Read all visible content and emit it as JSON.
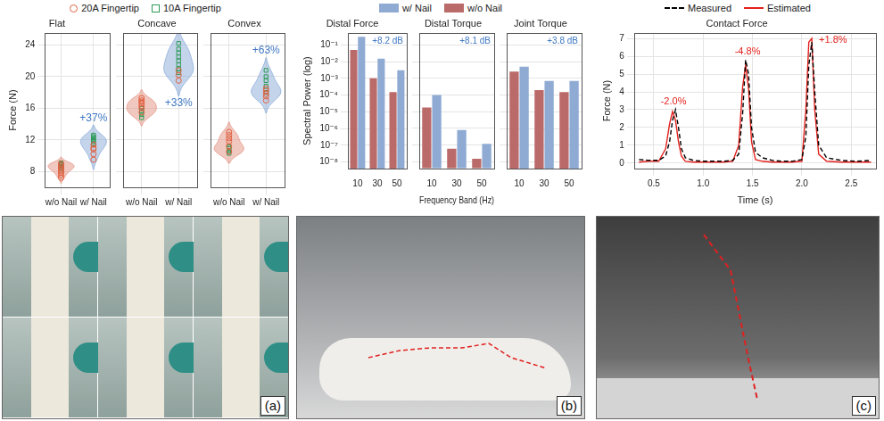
{
  "chart_data": [
    {
      "type": "violin",
      "title": "Flat",
      "categories": [
        "w/o Nail",
        "w/ Nail"
      ],
      "colors": [
        "#e69a8c",
        "#92b1da"
      ],
      "series": [
        {
          "name": "20A Fingertip",
          "color": "#e0603f",
          "marker": "circle",
          "values": [
            [
              7.2,
              7.5,
              7.8,
              8.0,
              8.2,
              8.4,
              8.6,
              8.8,
              9.0
            ],
            [
              9.5,
              10.2,
              10.8,
              11.0,
              11.4
            ]
          ]
        },
        {
          "name": "10A Fingertip",
          "color": "#2e9a57",
          "marker": "square",
          "values": [
            [
              8.3,
              8.5,
              8.7,
              8.9,
              9.0,
              9.1
            ],
            [
              11.5,
              11.8,
              12.0,
              12.2,
              12.4,
              12.6
            ]
          ]
        }
      ],
      "y_label": "Force (N)",
      "ylim": [
        6,
        25.5
      ],
      "yticks": [
        8,
        12,
        16,
        20,
        24
      ],
      "annotations": [
        {
          "text": "+37%"
        }
      ],
      "grid": true,
      "legend": "top"
    },
    {
      "type": "violin",
      "title": "Concave",
      "categories": [
        "w/o Nail",
        "w/ Nail"
      ],
      "colors": [
        "#e69a8c",
        "#92b1da"
      ],
      "series": [
        {
          "name": "20A Fingertip",
          "color": "#e0603f",
          "marker": "circle",
          "values": [
            [
              15.5,
              16.0,
              16.3,
              16.6,
              16.8,
              17.0,
              17.3
            ],
            [
              19.5,
              20.2,
              20.8
            ]
          ]
        },
        {
          "name": "10A Fingertip",
          "color": "#2e9a57",
          "marker": "square",
          "values": [
            [
              14.8,
              15.2,
              15.6,
              16.0
            ],
            [
              20.5,
              21.0,
              21.5,
              22.0,
              22.5,
              23.0,
              23.5,
              24.2
            ]
          ]
        }
      ],
      "ylim": [
        6,
        25.5
      ],
      "yticks": [
        8,
        12,
        16,
        20,
        24
      ],
      "tick_labels": "x",
      "annotations": [
        {
          "text": "+33%"
        }
      ],
      "grid": true
    },
    {
      "type": "violin",
      "title": "Convex",
      "categories": [
        "w/o Nail",
        "w/ Nail"
      ],
      "colors": [
        "#e69a8c",
        "#92b1da"
      ],
      "series": [
        {
          "name": "20A Fingertip",
          "color": "#e0603f",
          "marker": "circle",
          "values": [
            [
              10.5,
              11.2,
              11.8,
              12.2,
              12.6,
              13.0
            ],
            [
              17.0,
              17.5,
              17.8,
              18.2,
              18.5
            ]
          ]
        },
        {
          "name": "10A Fingertip",
          "color": "#2e9a57",
          "marker": "square",
          "values": [
            [
              10.3,
              10.6,
              10.9,
              11.1
            ],
            [
              18.0,
              18.8,
              19.5,
              20.0,
              20.8
            ]
          ]
        }
      ],
      "ylim": [
        6,
        25.5
      ],
      "yticks": [
        8,
        12,
        16,
        20,
        24
      ],
      "tick_labels": "x",
      "annotations": [
        {
          "text": "+63%"
        }
      ],
      "grid": true
    },
    {
      "type": "bar",
      "log": "y",
      "title": "Distal Force",
      "categories": [
        10,
        30,
        50
      ],
      "series": [
        {
          "name": "w/ Nail",
          "color": "#8fabd3",
          "values": [
            0.3,
            0.015,
            0.003
          ]
        },
        {
          "name": "w/o Nail",
          "color": "#bb6a6a",
          "values": [
            0.05,
            0.001,
            0.00015
          ]
        }
      ],
      "y_label": "Spectral Power (log)",
      "ylim": [
        4e-09,
        0.5
      ],
      "yticks": [
        {
          "value": 1e-08,
          "label": "10⁻⁸"
        },
        {
          "value": 1e-07,
          "label": "10⁻⁷"
        },
        {
          "value": 1e-06,
          "label": "10⁻⁶"
        },
        {
          "value": 1e-05,
          "label": "10⁻⁵"
        },
        {
          "value": 0.0001,
          "label": "10⁻⁴"
        },
        {
          "value": 0.001,
          "label": "10⁻³"
        },
        {
          "value": 0.01,
          "label": "10⁻²"
        },
        {
          "value": 0.1,
          "label": "10⁻¹"
        }
      ],
      "annotations": [
        {
          "text": "+8.2 dB"
        }
      ],
      "grid": true,
      "legend": "top"
    },
    {
      "type": "bar",
      "log": "y",
      "title": "Distal Torque",
      "categories": [
        10,
        30,
        50
      ],
      "series": [
        {
          "name": "w/ Nail",
          "color": "#8fabd3",
          "values": [
            0.0001,
            8e-07,
            1.2e-07
          ]
        },
        {
          "name": "w/o Nail",
          "color": "#bb6a6a",
          "values": [
            1.8e-05,
            6e-08,
            1.5e-08
          ]
        }
      ],
      "x_label": "Frequency Band (Hz)",
      "ylim": [
        4e-09,
        0.5
      ],
      "yticks": [
        {
          "value": 1e-08,
          "label": "10⁻⁸"
        },
        {
          "value": 1e-07,
          "label": "10⁻⁷"
        },
        {
          "value": 1e-06,
          "label": "10⁻⁶"
        },
        {
          "value": 1e-05,
          "label": "10⁻⁵"
        },
        {
          "value": 0.0001,
          "label": "10⁻⁴"
        },
        {
          "value": 0.001,
          "label": "10⁻³"
        },
        {
          "value": 0.01,
          "label": "10⁻²"
        },
        {
          "value": 0.1,
          "label": "10⁻¹"
        }
      ],
      "tick_labels": "x",
      "annotations": [
        {
          "text": "+8.1 dB"
        }
      ],
      "grid": true
    },
    {
      "type": "bar",
      "log": "y",
      "title": "Joint Torque",
      "categories": [
        10,
        30,
        50
      ],
      "series": [
        {
          "name": "w/ Nail",
          "color": "#8fabd3",
          "values": [
            0.005,
            0.0007,
            0.0007
          ]
        },
        {
          "name": "w/o Nail",
          "color": "#bb6a6a",
          "values": [
            0.0025,
            0.0002,
            0.00015
          ]
        }
      ],
      "ylim": [
        4e-09,
        0.5
      ],
      "yticks": [
        {
          "value": 1e-08,
          "label": "10⁻⁸"
        },
        {
          "value": 1e-07,
          "label": "10⁻⁷"
        },
        {
          "value": 1e-06,
          "label": "10⁻⁶"
        },
        {
          "value": 1e-05,
          "label": "10⁻⁵"
        },
        {
          "value": 0.0001,
          "label": "10⁻⁴"
        },
        {
          "value": 0.001,
          "label": "10⁻³"
        },
        {
          "value": 0.01,
          "label": "10⁻²"
        },
        {
          "value": 0.1,
          "label": "10⁻¹"
        }
      ],
      "tick_labels": "x",
      "annotations": [
        {
          "text": "+3.8 dB"
        }
      ],
      "grid": true
    },
    {
      "type": "line",
      "title": "Contact Force",
      "x": [
        0.35,
        0.45,
        0.55,
        0.62,
        0.66,
        0.69,
        0.72,
        0.75,
        0.78,
        0.82,
        0.9,
        1.0,
        1.1,
        1.2,
        1.3,
        1.36,
        1.4,
        1.43,
        1.46,
        1.49,
        1.53,
        1.6,
        1.7,
        1.8,
        1.9,
        2.0,
        2.04,
        2.07,
        2.1,
        2.13,
        2.17,
        2.25,
        2.4,
        2.55,
        2.7
      ],
      "series": [
        {
          "name": "Measured",
          "color": "#000000",
          "line_style": "dashed",
          "values": [
            0.2,
            0.15,
            0.15,
            0.4,
            1.2,
            2.4,
            3.0,
            2.0,
            0.8,
            0.3,
            0.15,
            0.1,
            0.1,
            0.1,
            0.15,
            0.5,
            2.8,
            5.8,
            5.0,
            2.0,
            0.6,
            0.3,
            0.15,
            0.1,
            0.1,
            0.2,
            1.5,
            5.5,
            6.8,
            4.0,
            1.0,
            0.3,
            0.15,
            0.1,
            0.15
          ]
        },
        {
          "name": "Estimated",
          "color": "#e3211c",
          "line_style": "solid",
          "values": [
            0.05,
            0.1,
            0.1,
            0.8,
            2.2,
            2.9,
            2.4,
            1.2,
            0.4,
            0.1,
            0.05,
            0.05,
            0.05,
            0.05,
            0.1,
            1.0,
            4.3,
            5.5,
            4.2,
            1.2,
            0.2,
            0.1,
            0.05,
            0.05,
            0.05,
            0.1,
            3.0,
            6.8,
            7.0,
            3.0,
            0.5,
            0.1,
            0.05,
            0.05,
            0.05
          ]
        }
      ],
      "x_label": "Time (s)",
      "y_label": "Force (N)",
      "xlim": [
        0.3,
        2.75
      ],
      "xticks": [
        0.5,
        {
          "value": 1,
          "label": "1.0"
        },
        1.5,
        {
          "value": 2,
          "label": "2.0"
        },
        2.5
      ],
      "ylim": [
        -0.3,
        7.3
      ],
      "yticks": [
        0,
        1,
        2,
        3,
        4,
        5,
        6,
        7
      ],
      "annotations": [
        {
          "text": "-2.0%",
          "x": 0.7
        },
        {
          "text": "-4.8%",
          "x": 1.45
        },
        {
          "text": "+1.8%",
          "x": 2.1
        }
      ],
      "grid": true,
      "legend": "top"
    }
  ],
  "photos": [
    {
      "label": "(a)"
    },
    {
      "label": "(b)"
    },
    {
      "label": "(c)"
    }
  ]
}
